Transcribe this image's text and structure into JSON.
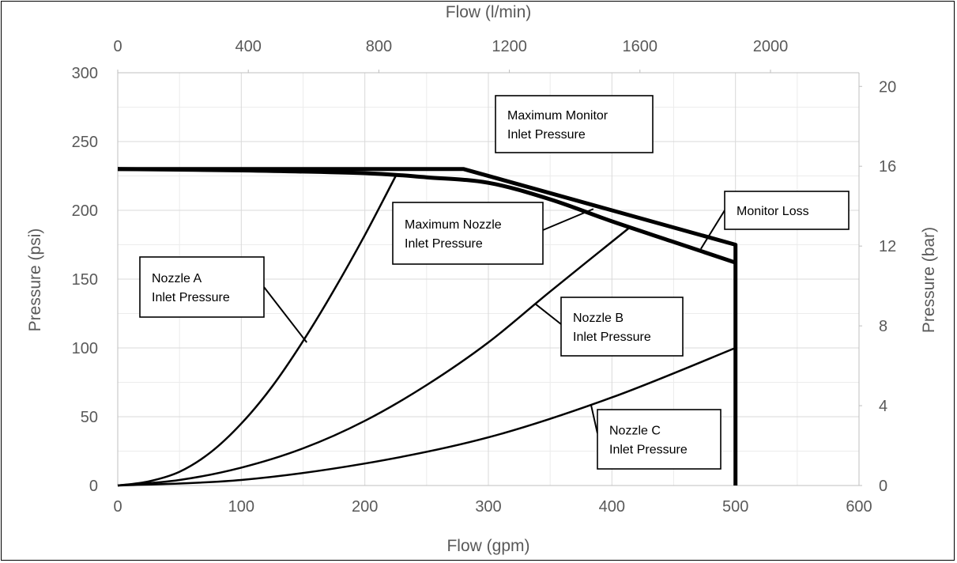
{
  "chart_data": {
    "type": "line",
    "x_axis": {
      "label": "Flow (gpm)",
      "range": [
        0,
        600
      ],
      "ticks": [
        0,
        100,
        200,
        300,
        400,
        500,
        600
      ]
    },
    "x2_axis": {
      "label": "Flow (l/min)",
      "ticks": [
        0,
        400,
        800,
        1200,
        1600,
        2000
      ]
    },
    "y_axis": {
      "label": "Pressure (psi)",
      "range": [
        0,
        300
      ],
      "ticks": [
        0,
        50,
        100,
        150,
        200,
        250,
        300
      ]
    },
    "y2_axis": {
      "label": "Pressure (bar)",
      "ticks": [
        0,
        4,
        8,
        12,
        16,
        20
      ]
    },
    "grid": true,
    "series": [
      {
        "name": "Maximum Monitor Inlet Pressure",
        "weight": "thick",
        "points": [
          [
            0,
            230
          ],
          [
            280,
            230
          ],
          [
            500,
            175
          ],
          [
            500,
            0
          ]
        ]
      },
      {
        "name": "Maximum Nozzle Inlet Pressure",
        "weight": "thick",
        "points": [
          [
            0,
            230
          ],
          [
            100,
            229
          ],
          [
            200,
            227
          ],
          [
            250,
            224
          ],
          [
            300,
            220
          ],
          [
            350,
            208
          ],
          [
            400,
            192
          ],
          [
            450,
            177
          ],
          [
            500,
            162
          ]
        ]
      },
      {
        "name": "Nozzle A Inlet Pressure",
        "weight": "thin",
        "points": [
          [
            0,
            0
          ],
          [
            25,
            3
          ],
          [
            50,
            10
          ],
          [
            75,
            24
          ],
          [
            100,
            45
          ],
          [
            125,
            72
          ],
          [
            150,
            105
          ],
          [
            175,
            142
          ],
          [
            200,
            182
          ],
          [
            225,
            225
          ]
        ]
      },
      {
        "name": "Nozzle B Inlet Pressure",
        "weight": "thin",
        "points": [
          [
            0,
            0
          ],
          [
            50,
            4
          ],
          [
            100,
            13
          ],
          [
            150,
            27
          ],
          [
            200,
            47
          ],
          [
            250,
            73
          ],
          [
            300,
            104
          ],
          [
            350,
            141
          ],
          [
            415,
            188
          ]
        ]
      },
      {
        "name": "Nozzle C Inlet Pressure",
        "weight": "thin",
        "points": [
          [
            0,
            0
          ],
          [
            100,
            4
          ],
          [
            200,
            16
          ],
          [
            300,
            35
          ],
          [
            400,
            64
          ],
          [
            500,
            100
          ]
        ]
      }
    ],
    "annotations": [
      {
        "lines": [
          "Maximum Monitor",
          "Inlet Pressure"
        ],
        "target": [
          282,
          229
        ]
      },
      {
        "lines": [
          "Maximum Nozzle",
          "Inlet Pressure"
        ],
        "target": [
          385,
          201
        ]
      },
      {
        "lines": [
          "Monitor Loss"
        ],
        "target": [
          472,
          172
        ]
      },
      {
        "lines": [
          "Nozzle A",
          "Inlet Pressure"
        ],
        "target": [
          153,
          104
        ]
      },
      {
        "lines": [
          "Nozzle B",
          "Inlet Pressure"
        ],
        "target": [
          338,
          132
        ]
      },
      {
        "lines": [
          "Nozzle C",
          "Inlet Pressure"
        ],
        "target": [
          383,
          59
        ]
      }
    ]
  }
}
